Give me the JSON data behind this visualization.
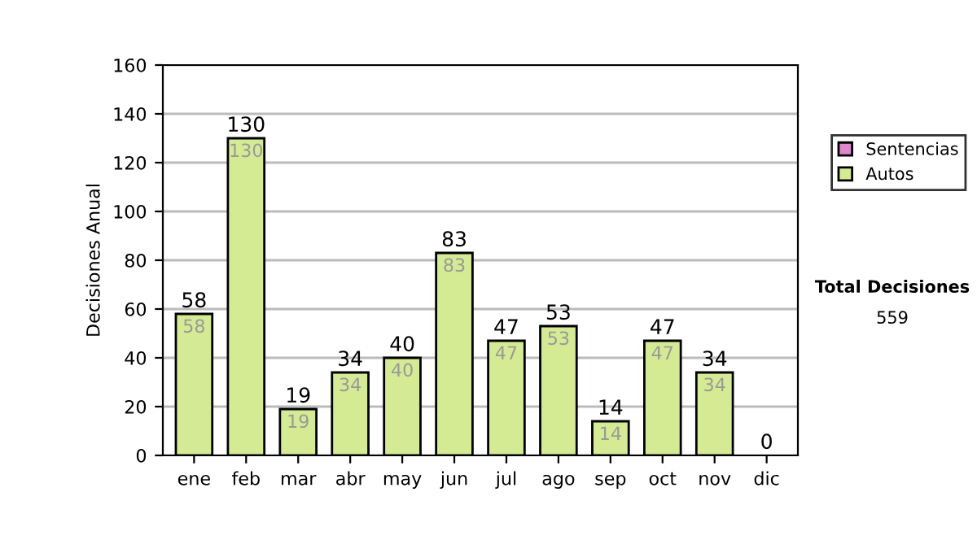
{
  "chart_data": {
    "type": "bar",
    "stacked": true,
    "ylabel": "Decisiones Anual",
    "categories": [
      "ene",
      "feb",
      "mar",
      "abr",
      "may",
      "jun",
      "jul",
      "ago",
      "sep",
      "oct",
      "nov",
      "dic"
    ],
    "series": [
      {
        "name": "Sentencias",
        "color": "#dd88cc",
        "values": [
          0,
          0,
          0,
          0,
          0,
          0,
          0,
          0,
          0,
          0,
          0,
          0
        ]
      },
      {
        "name": "Autos",
        "color": "#d4eb94",
        "values": [
          58,
          130,
          19,
          34,
          40,
          83,
          47,
          53,
          14,
          47,
          34,
          0
        ],
        "value_labels": [
          "58",
          "130",
          "19",
          "34",
          "40",
          "83",
          "47",
          "53",
          "14",
          "47",
          "34",
          null
        ]
      }
    ],
    "totals": [
      "58",
      "130",
      "19",
      "34",
      "40",
      "83",
      "47",
      "53",
      "14",
      "47",
      "34",
      "0"
    ],
    "ylim": [
      0,
      160
    ],
    "yticks": [
      0,
      20,
      40,
      60,
      80,
      100,
      120,
      140,
      160
    ],
    "grid": "y",
    "legend": "right",
    "annotations": [
      "Total Decisiones",
      "559"
    ]
  }
}
